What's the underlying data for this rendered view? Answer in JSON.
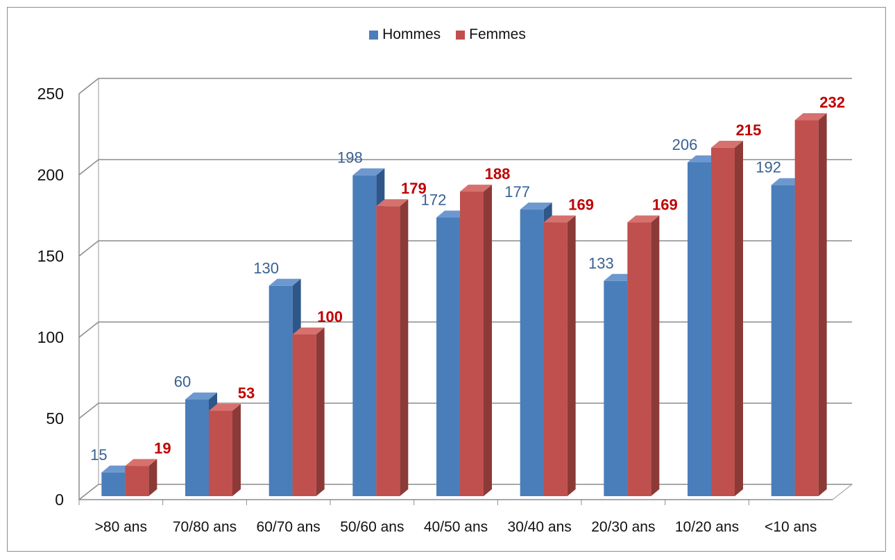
{
  "chart_data": {
    "type": "bar",
    "categories": [
      ">80 ans",
      "70/80 ans",
      "60/70 ans",
      "50/60 ans",
      "40/50 ans",
      "30/40 ans",
      "20/30 ans",
      "10/20 ans",
      "<10 ans"
    ],
    "series": [
      {
        "name": "Hommes",
        "values": [
          15,
          60,
          130,
          198,
          172,
          177,
          133,
          206,
          192
        ],
        "color": "#4a7ebb"
      },
      {
        "name": "Femmes",
        "values": [
          19,
          53,
          100,
          179,
          188,
          169,
          169,
          215,
          232
        ],
        "color": "#c0504d"
      }
    ],
    "yticks": [
      "0",
      "50",
      "100",
      "150",
      "200",
      "250"
    ],
    "ylim": [
      0,
      250
    ],
    "grid": true,
    "legend_position": "top",
    "label_colors": {
      "Hommes": "#376092",
      "Femmes": "#c00000"
    },
    "style": "3d-clustered-column"
  }
}
